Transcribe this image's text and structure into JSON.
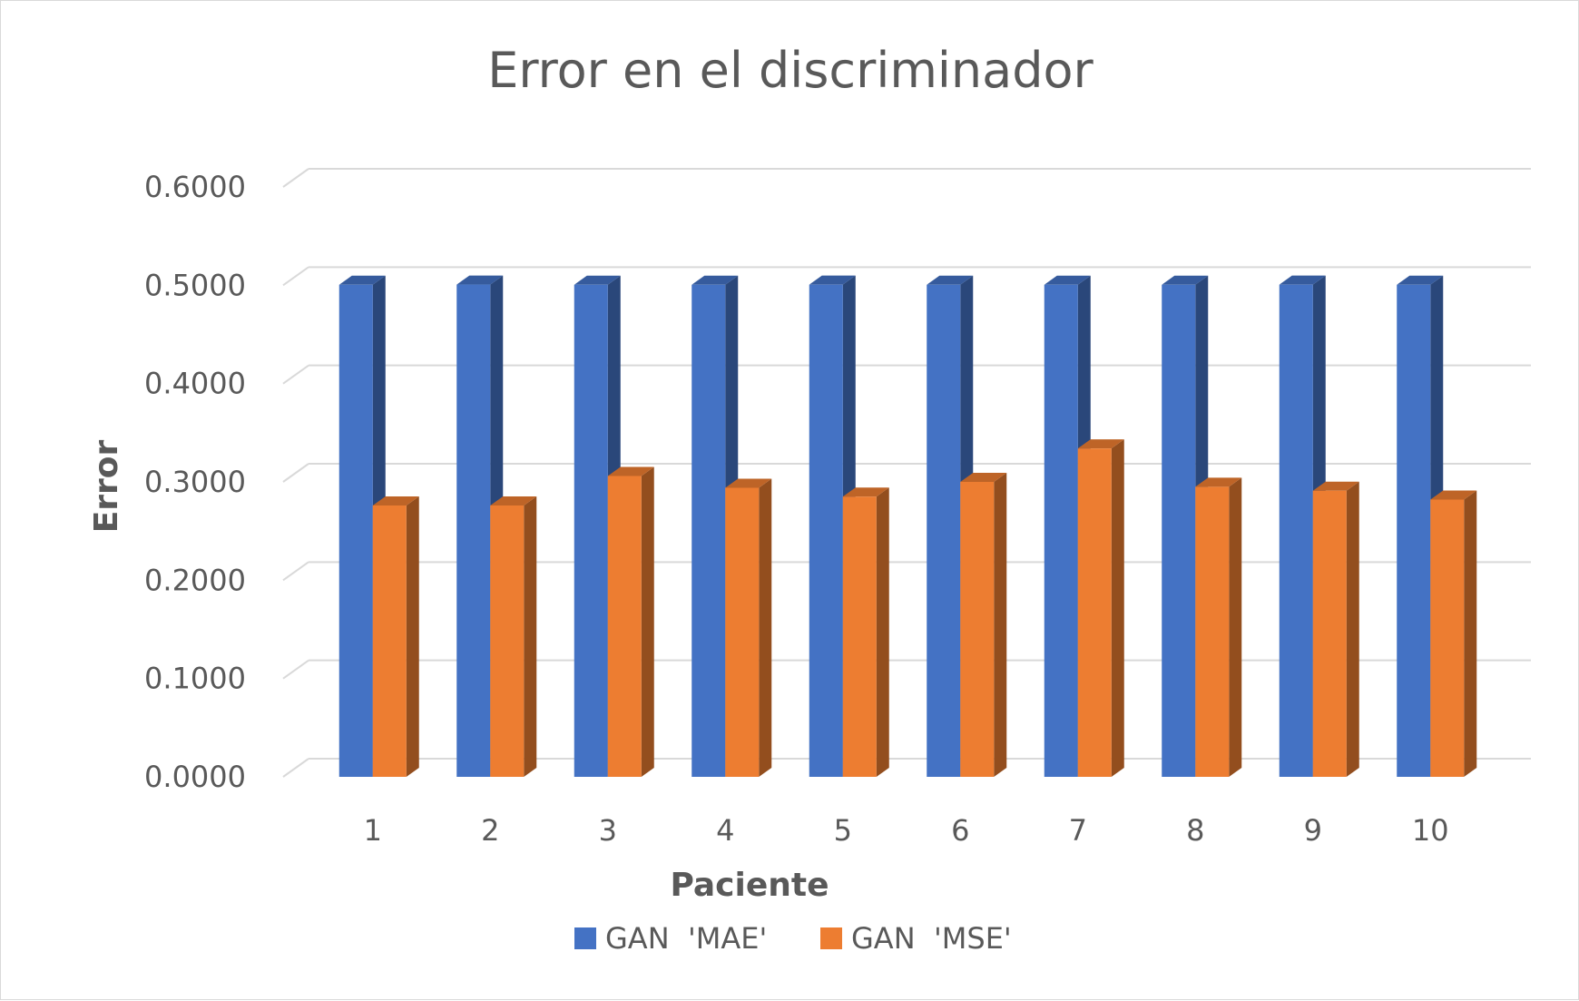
{
  "chart_data": {
    "type": "bar",
    "title": "Error en el discriminador",
    "xlabel": "Paciente",
    "ylabel": "Error",
    "ylim": [
      0,
      0.6
    ],
    "y_ticks": [
      "0.0000",
      "0.1000",
      "0.2000",
      "0.3000",
      "0.4000",
      "0.5000",
      "0.6000"
    ],
    "categories": [
      "1",
      "2",
      "3",
      "4",
      "5",
      "6",
      "7",
      "8",
      "9",
      "10"
    ],
    "grid": true,
    "legend_position": "bottom",
    "series": [
      {
        "name": "GAN  'MAE'",
        "color": "#4472C4",
        "values": [
          0.5005,
          0.5007,
          0.5005,
          0.5005,
          0.5006,
          0.5005,
          0.5005,
          0.5005,
          0.5006,
          0.5005
        ]
      },
      {
        "name": "GAN  'MSE'",
        "color": "#ED7D31",
        "values": [
          0.276,
          0.276,
          0.306,
          0.294,
          0.285,
          0.3,
          0.334,
          0.295,
          0.291,
          0.282
        ]
      }
    ]
  }
}
